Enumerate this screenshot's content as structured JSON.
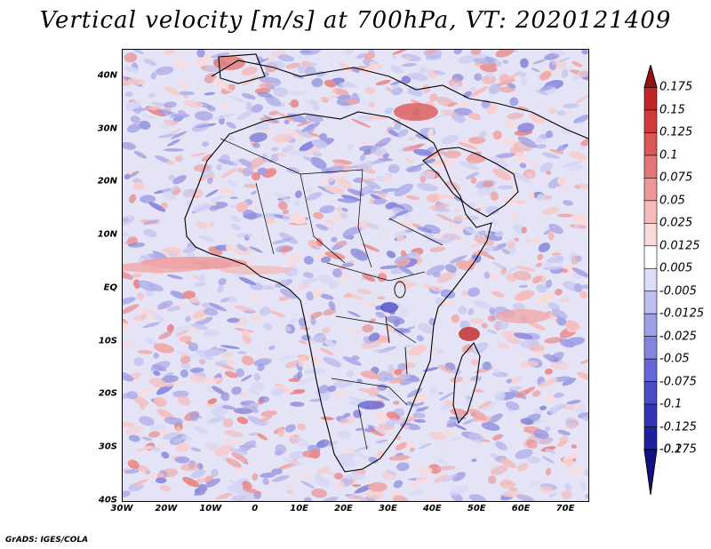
{
  "title": "Vertical velocity [m/s] at 700hPa, VT: 2020121409",
  "credit": "GrADS: IGES/COLA",
  "lat_labels": [
    "40N",
    "30N",
    "20N",
    "10N",
    "EQ",
    "10S",
    "20S",
    "30S",
    "40S"
  ],
  "lat_values": [
    40,
    30,
    20,
    10,
    0,
    -10,
    -20,
    -30,
    -40
  ],
  "lon_labels": [
    "30W",
    "20W",
    "10W",
    "0",
    "10E",
    "20E",
    "30E",
    "40E",
    "50E",
    "60E",
    "70E"
  ],
  "lon_values": [
    -30,
    -20,
    -10,
    0,
    10,
    20,
    30,
    40,
    50,
    60,
    70
  ],
  "colorbar": {
    "labels": [
      "0.175",
      "0.15",
      "0.125",
      "0.1",
      "0.075",
      "0.05",
      "0.025",
      "0.0125",
      "0.005",
      "-0.005",
      "-0.0125",
      "-0.025",
      "-0.05",
      "-0.075",
      "-0.1",
      "-0.125",
      "-0.175",
      "-0.2"
    ],
    "colors": [
      "#9b1010",
      "#c02626",
      "#d03a3a",
      "#dd5757",
      "#e57676",
      "#ee9797",
      "#f5baba",
      "#fadada",
      "#ffffff",
      "#dcdcf7",
      "#bebef0",
      "#a0a0e8",
      "#8383e0",
      "#6666d6",
      "#4b4bc8",
      "#3333b8",
      "#1f1fa0",
      "#121288"
    ]
  }
}
